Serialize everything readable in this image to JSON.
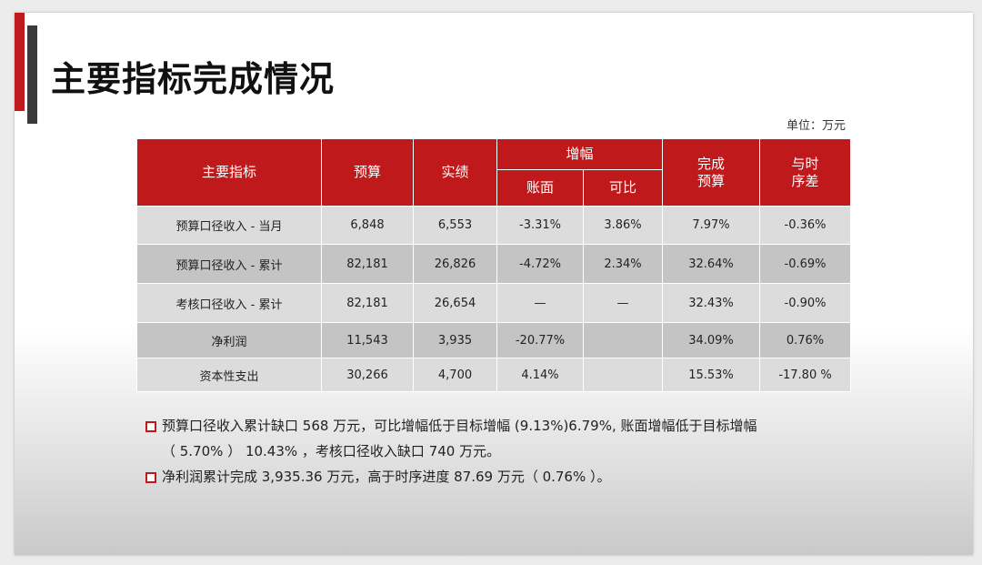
{
  "title": "主要指标完成情况",
  "unit": "单位：万元",
  "table": {
    "headers": {
      "indicator": "主要指标",
      "budget": "预算",
      "actual": "实绩",
      "growth": "增幅",
      "growth_book": "账面",
      "growth_comparable": "可比",
      "completion_line1": "完成",
      "completion_line2": "预算",
      "schedule_line1": "与时",
      "schedule_line2": "序差"
    },
    "rows": [
      {
        "name": "预算口径收入 - 当月",
        "budget": "6,848",
        "actual": "6,553",
        "book": "-3.31%",
        "comparable": "3.86%",
        "completion": "7.97%",
        "schedule": "-0.36%"
      },
      {
        "name": "预算口径收入 - 累计",
        "budget": "82,181",
        "actual": "26,826",
        "book": "-4.72%",
        "comparable": "2.34%",
        "completion": "32.64%",
        "schedule": "-0.69%"
      },
      {
        "name": "考核口径收入 - 累计",
        "budget": "82,181",
        "actual": "26,654",
        "book": "—",
        "comparable": "—",
        "completion": "32.43%",
        "schedule": "-0.90%"
      },
      {
        "name": "净利润",
        "budget": "11,543",
        "actual": "3,935",
        "book": "-20.77%",
        "comparable": "",
        "completion": "34.09%",
        "schedule": "0.76%"
      },
      {
        "name": "资本性支出",
        "budget": "30,266",
        "actual": "4,700",
        "book": "4.14%",
        "comparable": "",
        "completion": "15.53%",
        "schedule": "-17.80 %"
      }
    ]
  },
  "notes": [
    {
      "line1": "预算口径收入累计缺口 568 万元，可比增幅低于目标增幅 (9.13%)6.79%, 账面增幅低于目标增幅",
      "line2": "（ 5.70% ） 10.43% ，考核口径收入缺口 740 万元。"
    },
    {
      "line1": "净利润累计完成 3,935.36 万元，高于时序进度 87.69 万元（ 0.76% ）。"
    }
  ],
  "colors": {
    "accent": "#c0191b",
    "dark_bar": "#3a3a3a",
    "row_light": "#dcdcdc",
    "row_dark": "#c4c4c4"
  }
}
